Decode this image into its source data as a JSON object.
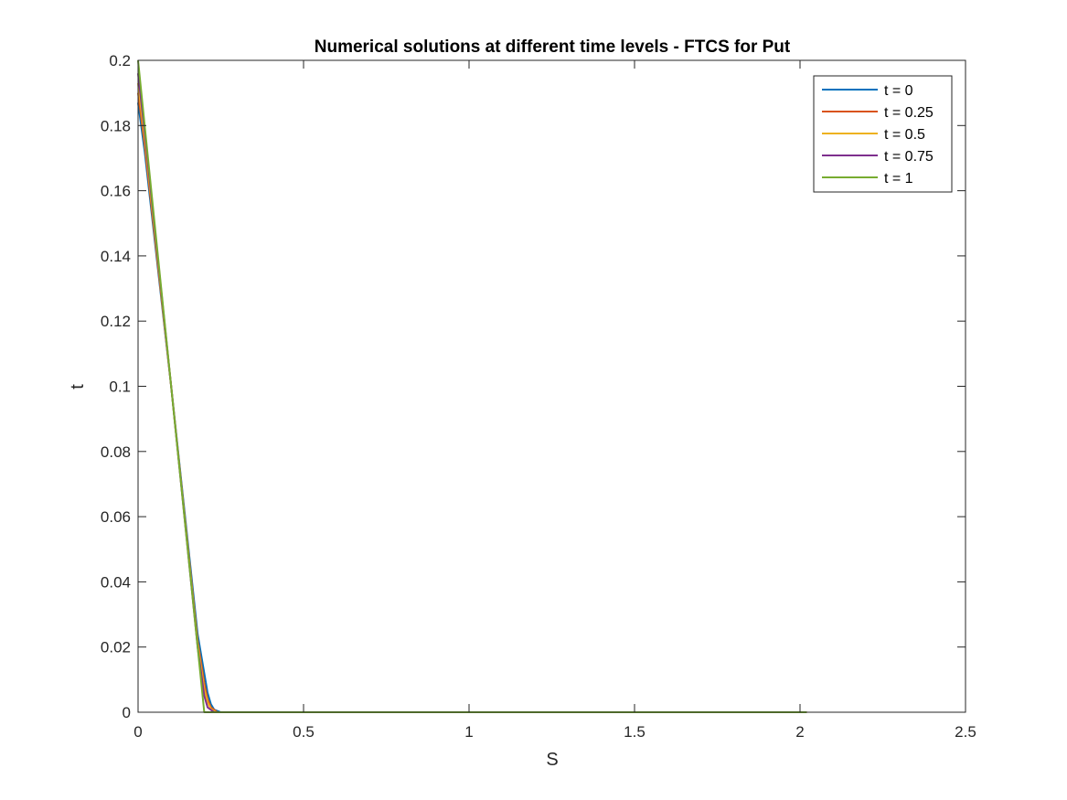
{
  "chart_data": {
    "type": "line",
    "title": "Numerical solutions at different time levels - FTCS for Put",
    "xlabel": "S",
    "ylabel": "t",
    "xlim": [
      0,
      2.5
    ],
    "ylim": [
      0,
      0.2
    ],
    "xticks": [
      0,
      0.5,
      1,
      1.5,
      2,
      2.5
    ],
    "yticks": [
      0,
      0.02,
      0.04,
      0.06,
      0.08,
      0.1,
      0.12,
      0.14,
      0.16,
      0.18,
      0.2
    ],
    "xtick_labels": [
      "0",
      "0.5",
      "1",
      "1.5",
      "2",
      "2.5"
    ],
    "ytick_labels": [
      "0",
      "0.02",
      "0.04",
      "0.06",
      "0.08",
      "0.1",
      "0.12",
      "0.14",
      "0.16",
      "0.18",
      "0.2"
    ],
    "grid": false,
    "legend_position": "top-right",
    "series": [
      {
        "name": "t = 0",
        "color": "#0072BD",
        "x": [
          0,
          0.02,
          0.1,
          0.18,
          0.2,
          0.21,
          0.22,
          0.23,
          0.25,
          2.02
        ],
        "y": [
          0.187,
          0.172,
          0.1,
          0.024,
          0.012,
          0.006,
          0.0025,
          0.0008,
          0,
          0
        ]
      },
      {
        "name": "t = 0.25",
        "color": "#D95319",
        "x": [
          0,
          0.02,
          0.1,
          0.18,
          0.2,
          0.21,
          0.22,
          0.24,
          2.02
        ],
        "y": [
          0.19,
          0.174,
          0.1,
          0.022,
          0.009,
          0.004,
          0.0015,
          0,
          0
        ]
      },
      {
        "name": "t = 0.5",
        "color": "#EDB120",
        "x": [
          0,
          0.02,
          0.1,
          0.18,
          0.2,
          0.21,
          0.22,
          0.235,
          2.02
        ],
        "y": [
          0.193,
          0.176,
          0.1,
          0.021,
          0.007,
          0.003,
          0.001,
          0,
          0
        ]
      },
      {
        "name": "t = 0.75",
        "color": "#7E2F8E",
        "x": [
          0,
          0.02,
          0.1,
          0.18,
          0.2,
          0.21,
          0.23,
          2.02
        ],
        "y": [
          0.196,
          0.178,
          0.1,
          0.02,
          0.005,
          0.0015,
          0,
          0
        ],
        "_note": ""
      },
      {
        "name": "t = 1",
        "color": "#77AC30",
        "x": [
          0,
          0.02,
          0.1,
          0.18,
          0.2,
          2.02
        ],
        "y": [
          0.2,
          0.18,
          0.1,
          0.02,
          0,
          0
        ]
      }
    ]
  }
}
